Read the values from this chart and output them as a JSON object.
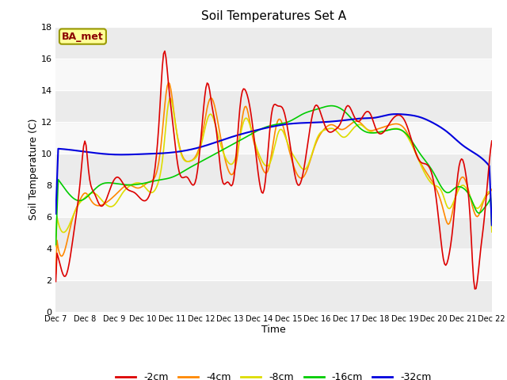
{
  "title": "Soil Temperatures Set A",
  "xlabel": "Time",
  "ylabel": "Soil Temperature (C)",
  "annotation": "BA_met",
  "ylim": [
    0,
    18
  ],
  "xlim": [
    0,
    360
  ],
  "tick_labels": [
    "Dec 7",
    "Dec 8",
    "Dec 9",
    "Dec 10",
    "Dec 11",
    "Dec 12",
    "Dec 13",
    "Dec 14",
    "Dec 15",
    "Dec 16",
    "Dec 17",
    "Dec 18",
    "Dec 19",
    "Dec 20",
    "Dec 21",
    "Dec 22"
  ],
  "series": {
    "-2cm": {
      "color": "#dd0000",
      "lw": 1.2
    },
    "-4cm": {
      "color": "#ff8800",
      "lw": 1.2
    },
    "-8cm": {
      "color": "#dddd00",
      "lw": 1.2
    },
    "-16cm": {
      "color": "#00cc00",
      "lw": 1.2
    },
    "-32cm": {
      "color": "#0000dd",
      "lw": 1.5
    }
  }
}
